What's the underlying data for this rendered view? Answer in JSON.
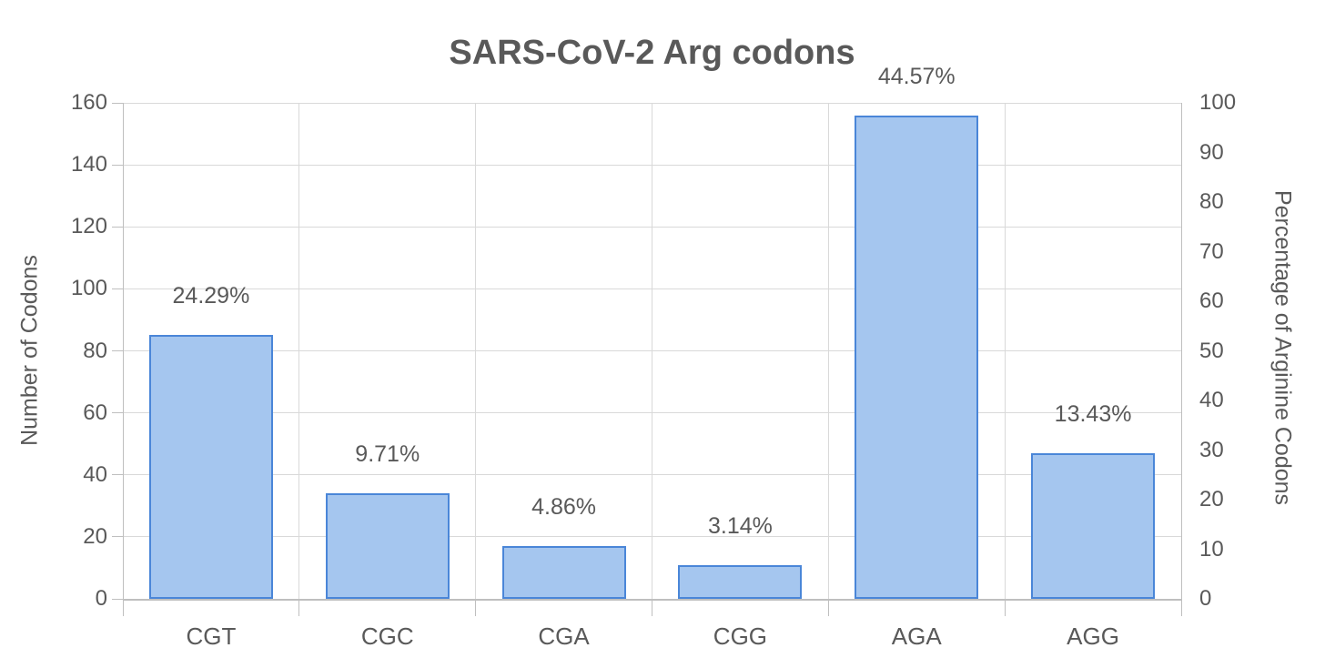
{
  "chart_data": {
    "type": "bar",
    "title": "SARS-CoV-2 Arg codons",
    "categories": [
      "CGT",
      "CGC",
      "CGA",
      "CGG",
      "AGA",
      "AGG"
    ],
    "values": [
      85,
      34,
      17,
      11,
      156,
      47
    ],
    "bar_labels": [
      "24.29%",
      "9.71%",
      "4.86%",
      "3.14%",
      "44.57%",
      "13.43%"
    ],
    "left_axis": {
      "label": "Number of Codons",
      "min": 0,
      "max": 160,
      "step": 20,
      "tick_labels": [
        "0",
        "20",
        "40",
        "60",
        "80",
        "100",
        "120",
        "140",
        "160"
      ]
    },
    "right_axis": {
      "label": "Percentage of Arginine Codons",
      "min": 0,
      "max": 100,
      "step": 10,
      "tick_labels": [
        "0",
        "10",
        "20",
        "30",
        "40",
        "50",
        "60",
        "70",
        "80",
        "90",
        "100"
      ]
    },
    "legend": "none",
    "grid": "on",
    "colors": {
      "bar_fill": "#a5c6ef",
      "bar_border": "#4a86d8",
      "gridline": "#d9d9d9",
      "axis_line": "#bfbfbf",
      "text": "#595959",
      "background": "#ffffff"
    }
  }
}
